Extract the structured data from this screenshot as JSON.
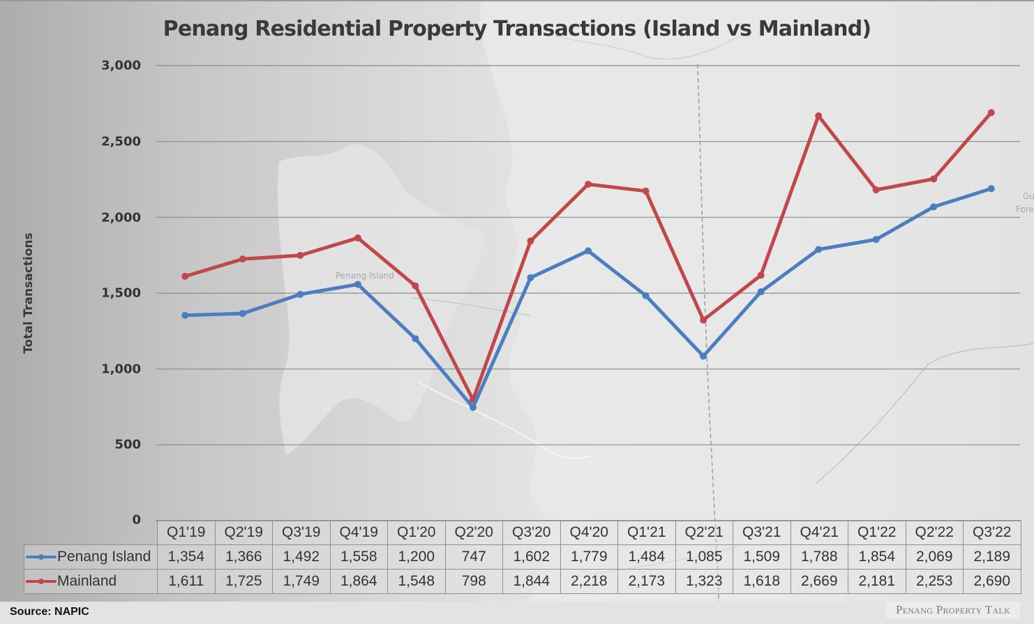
{
  "title": "Penang Residential Property Transactions (Island vs Mainland)",
  "y_axis": {
    "title": "Total Transactions",
    "ticks": [
      "3,000",
      "2,500",
      "2,000",
      "1,500",
      "1,000",
      "500",
      "0"
    ]
  },
  "map_labels": {
    "island": "Penang Island",
    "right_1": "Gu",
    "right_2": "Fore"
  },
  "table": {
    "headers": [
      "Q1'19",
      "Q2'19",
      "Q3'19",
      "Q4'19",
      "Q1'20",
      "Q2'20",
      "Q3'20",
      "Q4'20",
      "Q1'21",
      "Q2'21",
      "Q3'21",
      "Q4'21",
      "Q1'22",
      "Q2'22",
      "Q3'22"
    ],
    "rows": [
      {
        "label": "Penang Island",
        "values": [
          "1,354",
          "1,366",
          "1,492",
          "1,558",
          "1,200",
          "747",
          "1,602",
          "1,779",
          "1,484",
          "1,085",
          "1,509",
          "1,788",
          "1,854",
          "2,069",
          "2,189"
        ]
      },
      {
        "label": "Mainland",
        "values": [
          "1,611",
          "1,725",
          "1,749",
          "1,864",
          "1,548",
          "798",
          "1,844",
          "2,218",
          "2,173",
          "1,323",
          "1,618",
          "2,669",
          "2,181",
          "2,253",
          "2,690"
        ]
      }
    ]
  },
  "footer": {
    "source": "Source: NAPIC",
    "watermark": "Penang Property Talk"
  },
  "colors": {
    "island": "#4a7ebf",
    "mainland": "#c0474a",
    "gridline": "#8a8a8a"
  },
  "chart_data": {
    "type": "line",
    "title": "Penang Residential Property Transactions (Island vs Mainland)",
    "xlabel": "",
    "ylabel": "Total Transactions",
    "ylim": [
      0,
      3000
    ],
    "yticks": [
      0,
      500,
      1000,
      1500,
      2000,
      2500,
      3000
    ],
    "grid": true,
    "legend_position": "data-table",
    "categories": [
      "Q1'19",
      "Q2'19",
      "Q3'19",
      "Q4'19",
      "Q1'20",
      "Q2'20",
      "Q3'20",
      "Q4'20",
      "Q1'21",
      "Q2'21",
      "Q3'21",
      "Q4'21",
      "Q1'22",
      "Q2'22",
      "Q3'22"
    ],
    "series": [
      {
        "name": "Penang Island",
        "color": "#4a7ebf",
        "values": [
          1354,
          1366,
          1492,
          1558,
          1200,
          747,
          1602,
          1779,
          1484,
          1085,
          1509,
          1788,
          1854,
          2069,
          2189
        ]
      },
      {
        "name": "Mainland",
        "color": "#c0474a",
        "values": [
          1611,
          1725,
          1749,
          1864,
          1548,
          798,
          1844,
          2218,
          2173,
          1323,
          1618,
          2669,
          2181,
          2253,
          2690
        ]
      }
    ],
    "source": "NAPIC"
  }
}
